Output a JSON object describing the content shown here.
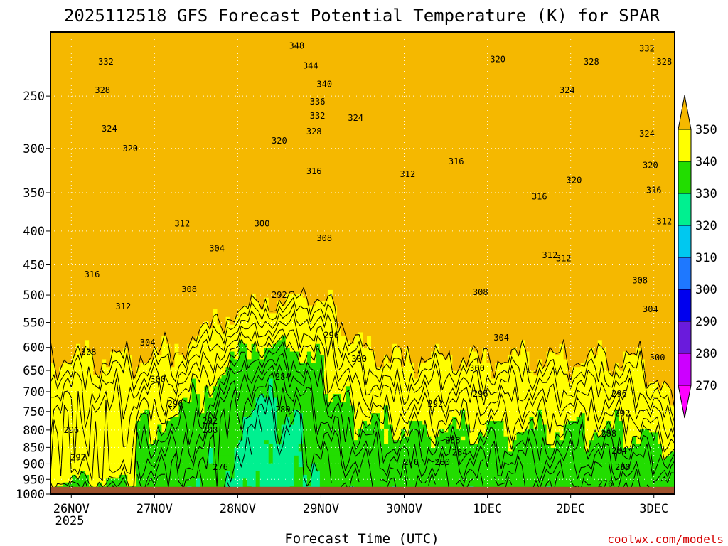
{
  "chart_data": {
    "type": "heatmap",
    "title": "2025112518 GFS Forecast Potential Temperature (K) for SPAR",
    "xlabel": "Forecast Time (UTC)",
    "ylabel": "",
    "x_ticks": [
      "26NOV",
      "27NOV",
      "28NOV",
      "29NOV",
      "30NOV",
      "1DEC",
      "2DEC",
      "3DEC"
    ],
    "x_tick_sub": "2025",
    "x_tick_hours": [
      6,
      30,
      54,
      78,
      102,
      126,
      150,
      174
    ],
    "x_range_hours": [
      0,
      180
    ],
    "y_ticks": [
      250,
      300,
      350,
      400,
      450,
      500,
      550,
      600,
      650,
      700,
      750,
      800,
      850,
      900,
      950,
      1000
    ],
    "y_range": [
      200,
      1000
    ],
    "y_scale": "log",
    "grid": "dotted",
    "ground_level_hpa": 975,
    "colorbar": {
      "labels": [
        350,
        340,
        330,
        320,
        310,
        300,
        290,
        280,
        270
      ],
      "colors": [
        "#f5b800",
        "#ffff00",
        "#22dd00",
        "#00f090",
        "#00c8f0",
        "#1e78ff",
        "#0000ee",
        "#6a1bdc",
        "#cc00ff",
        "#ff00ff"
      ],
      "position": "right",
      "ends": "triangular"
    },
    "contour_levels_K": [
      270,
      350,
      2
    ],
    "contour_labels": [
      {
        "text": "348",
        "h": 71,
        "p": 210
      },
      {
        "text": "344",
        "h": 75,
        "p": 225
      },
      {
        "text": "340",
        "h": 79,
        "p": 240
      },
      {
        "text": "336",
        "h": 77,
        "p": 255
      },
      {
        "text": "332",
        "h": 77,
        "p": 268
      },
      {
        "text": "328",
        "h": 76,
        "p": 283
      },
      {
        "text": "324",
        "h": 88,
        "p": 270
      },
      {
        "text": "320",
        "h": 66,
        "p": 292
      },
      {
        "text": "316",
        "h": 76,
        "p": 325
      },
      {
        "text": "312",
        "h": 103,
        "p": 328
      },
      {
        "text": "316",
        "h": 117,
        "p": 314
      },
      {
        "text": "320",
        "h": 129,
        "p": 220
      },
      {
        "text": "328",
        "h": 156,
        "p": 222
      },
      {
        "text": "332",
        "h": 172,
        "p": 212
      },
      {
        "text": "328",
        "h": 177,
        "p": 222
      },
      {
        "text": "324",
        "h": 149,
        "p": 245
      },
      {
        "text": "324",
        "h": 172,
        "p": 285
      },
      {
        "text": "320",
        "h": 173,
        "p": 318
      },
      {
        "text": "316",
        "h": 174,
        "p": 347
      },
      {
        "text": "312",
        "h": 177,
        "p": 387
      },
      {
        "text": "320",
        "h": 151,
        "p": 335
      },
      {
        "text": "316",
        "h": 141,
        "p": 355
      },
      {
        "text": "312",
        "h": 148,
        "p": 440
      },
      {
        "text": "308",
        "h": 170,
        "p": 475
      },
      {
        "text": "304",
        "h": 173,
        "p": 525
      },
      {
        "text": "300",
        "h": 175,
        "p": 622
      },
      {
        "text": "332",
        "h": 16,
        "p": 222
      },
      {
        "text": "328",
        "h": 15,
        "p": 245
      },
      {
        "text": "324",
        "h": 17,
        "p": 280
      },
      {
        "text": "320",
        "h": 23,
        "p": 300
      },
      {
        "text": "312",
        "h": 38,
        "p": 390
      },
      {
        "text": "316",
        "h": 12,
        "p": 465
      },
      {
        "text": "312",
        "h": 21,
        "p": 520
      },
      {
        "text": "308",
        "h": 11,
        "p": 610
      },
      {
        "text": "304",
        "h": 28,
        "p": 590
      },
      {
        "text": "300",
        "h": 31,
        "p": 670
      },
      {
        "text": "296",
        "h": 36,
        "p": 730
      },
      {
        "text": "292",
        "h": 46,
        "p": 775
      },
      {
        "text": "288",
        "h": 46,
        "p": 800
      },
      {
        "text": "296",
        "h": 6,
        "p": 800
      },
      {
        "text": "292",
        "h": 8,
        "p": 880
      },
      {
        "text": "304",
        "h": 48,
        "p": 425
      },
      {
        "text": "308",
        "h": 40,
        "p": 490
      },
      {
        "text": "300",
        "h": 61,
        "p": 390
      },
      {
        "text": "308",
        "h": 79,
        "p": 410
      },
      {
        "text": "292",
        "h": 66,
        "p": 500
      },
      {
        "text": "296",
        "h": 81,
        "p": 575
      },
      {
        "text": "300",
        "h": 89,
        "p": 625
      },
      {
        "text": "284",
        "h": 67,
        "p": 665
      },
      {
        "text": "280",
        "h": 67,
        "p": 745
      },
      {
        "text": "276",
        "h": 49,
        "p": 910
      },
      {
        "text": "276",
        "h": 104,
        "p": 895
      },
      {
        "text": "280",
        "h": 113,
        "p": 895
      },
      {
        "text": "284",
        "h": 118,
        "p": 865
      },
      {
        "text": "288",
        "h": 116,
        "p": 830
      },
      {
        "text": "292",
        "h": 111,
        "p": 730
      },
      {
        "text": "296",
        "h": 124,
        "p": 705
      },
      {
        "text": "300",
        "h": 123,
        "p": 645
      },
      {
        "text": "304",
        "h": 130,
        "p": 580
      },
      {
        "text": "308",
        "h": 124,
        "p": 495
      },
      {
        "text": "312",
        "h": 144,
        "p": 435
      },
      {
        "text": "296",
        "h": 164,
        "p": 705
      },
      {
        "text": "292",
        "h": 165,
        "p": 755
      },
      {
        "text": "288",
        "h": 161,
        "p": 810
      },
      {
        "text": "284",
        "h": 164,
        "p": 860
      },
      {
        "text": "280",
        "h": 165,
        "p": 910
      },
      {
        "text": "276",
        "h": 160,
        "p": 965
      }
    ]
  },
  "credit": "coolwx.com/models"
}
